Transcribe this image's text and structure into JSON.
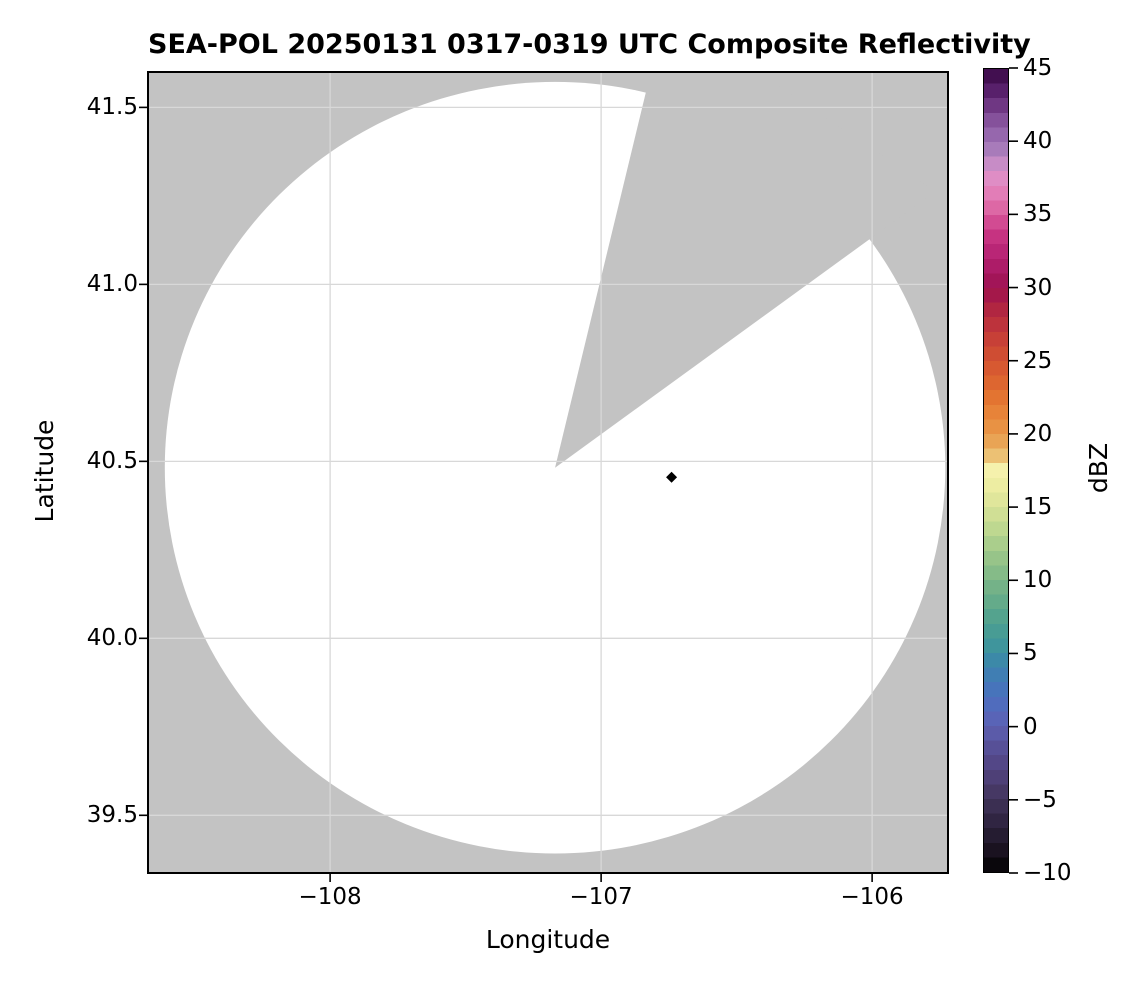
{
  "chart_data": {
    "type": "heatmap",
    "title": "SEA-POL 20250131 0317-0319 UTC Composite Reflectivity",
    "xlabel": "Longitude",
    "ylabel": "Latitude",
    "xlim": [
      -108.672,
      -105.72
    ],
    "ylim": [
      39.337,
      41.6
    ],
    "x_ticks": [
      -108,
      -107,
      -106
    ],
    "x_tick_labels": [
      "−108",
      "−107",
      "−106"
    ],
    "y_ticks": [
      41.5,
      41.0,
      40.5,
      40.0,
      39.5
    ],
    "y_tick_labels": [
      "41.5",
      "41.0",
      "40.5",
      "40.0",
      "39.5"
    ],
    "grid": true,
    "grid_color": "#d8d8d8",
    "masked_region_color": "#c3c3c3",
    "coverage_color": "#ffffff",
    "spine_color": "#000000",
    "radar": {
      "name": "SEA-POL",
      "center_lon": -107.17,
      "center_lat": 40.482,
      "coverage_radius_lon_deg": 1.44,
      "coverage_radius_lat_deg": 1.09,
      "masked_sector_azimuth_deg": [
        13.6,
        54.0
      ],
      "note": "white disk = radar coverage; gray = no data / masked"
    },
    "echoes": [
      {
        "lon": -106.74,
        "lat": 40.455,
        "dbz_approx": -10,
        "marker": "diamond",
        "color": "#000000"
      }
    ],
    "colorbar": {
      "label": "dBZ",
      "range": [
        -10,
        45
      ],
      "tick_values": [
        45,
        40,
        35,
        30,
        25,
        20,
        15,
        10,
        5,
        0,
        -5,
        -10
      ],
      "tick_labels": [
        "45",
        "40",
        "35",
        "30",
        "25",
        "20",
        "15",
        "10",
        "5",
        "0",
        "−5",
        "−10"
      ],
      "band_step_dbz": 1,
      "orientation": "vertical",
      "stops": [
        [
          -10,
          "#000000"
        ],
        [
          -9,
          "#140d18"
        ],
        [
          -8,
          "#1f1728"
        ],
        [
          -7,
          "#2a2039"
        ],
        [
          -6,
          "#352a4a"
        ],
        [
          -5,
          "#413359"
        ],
        [
          -4,
          "#4a3c6e"
        ],
        [
          -3,
          "#524380"
        ],
        [
          -2,
          "#544b8e"
        ],
        [
          -1,
          "#59559f"
        ],
        [
          0,
          "#5d60b3"
        ],
        [
          1,
          "#5568bb"
        ],
        [
          2,
          "#4a6fbe"
        ],
        [
          3,
          "#4379b8"
        ],
        [
          4,
          "#3d82ae"
        ],
        [
          5,
          "#3b90a1"
        ],
        [
          6,
          "#439997"
        ],
        [
          7,
          "#4d9f90"
        ],
        [
          8,
          "#5ba78c"
        ],
        [
          9,
          "#6cae88"
        ],
        [
          10,
          "#7cb688"
        ],
        [
          11,
          "#8dbf87"
        ],
        [
          12,
          "#a0c98a"
        ],
        [
          13,
          "#b4d38e"
        ],
        [
          14,
          "#c8dc92"
        ],
        [
          15,
          "#d8e297"
        ],
        [
          16,
          "#e7ea9e"
        ],
        [
          17,
          "#f2efa6"
        ],
        [
          17.5,
          "#f5f1ac"
        ],
        [
          18,
          "#efd489"
        ],
        [
          19,
          "#e9ae5f"
        ],
        [
          20,
          "#e89a4a"
        ],
        [
          21,
          "#e78a3e"
        ],
        [
          22,
          "#e67b33"
        ],
        [
          23,
          "#e06c2f"
        ],
        [
          24,
          "#da5f30"
        ],
        [
          25,
          "#d35331"
        ],
        [
          26,
          "#cb4635"
        ],
        [
          27,
          "#c23a39"
        ],
        [
          28,
          "#b72c3e"
        ],
        [
          29,
          "#ab1f44"
        ],
        [
          30,
          "#9c1150"
        ],
        [
          31,
          "#a71860"
        ],
        [
          32,
          "#b22070"
        ],
        [
          33,
          "#bf2c7b"
        ],
        [
          34,
          "#cc3987"
        ],
        [
          35,
          "#d85c9c"
        ],
        [
          36,
          "#e273ae"
        ],
        [
          37,
          "#e186bf"
        ],
        [
          38,
          "#dc93cb"
        ],
        [
          39,
          "#b285c0"
        ],
        [
          40,
          "#9e71b3"
        ],
        [
          41,
          "#8e5da6"
        ],
        [
          42,
          "#7b4490"
        ],
        [
          43,
          "#632a75"
        ],
        [
          44,
          "#4d1560"
        ],
        [
          45,
          "#36093f"
        ]
      ]
    }
  }
}
